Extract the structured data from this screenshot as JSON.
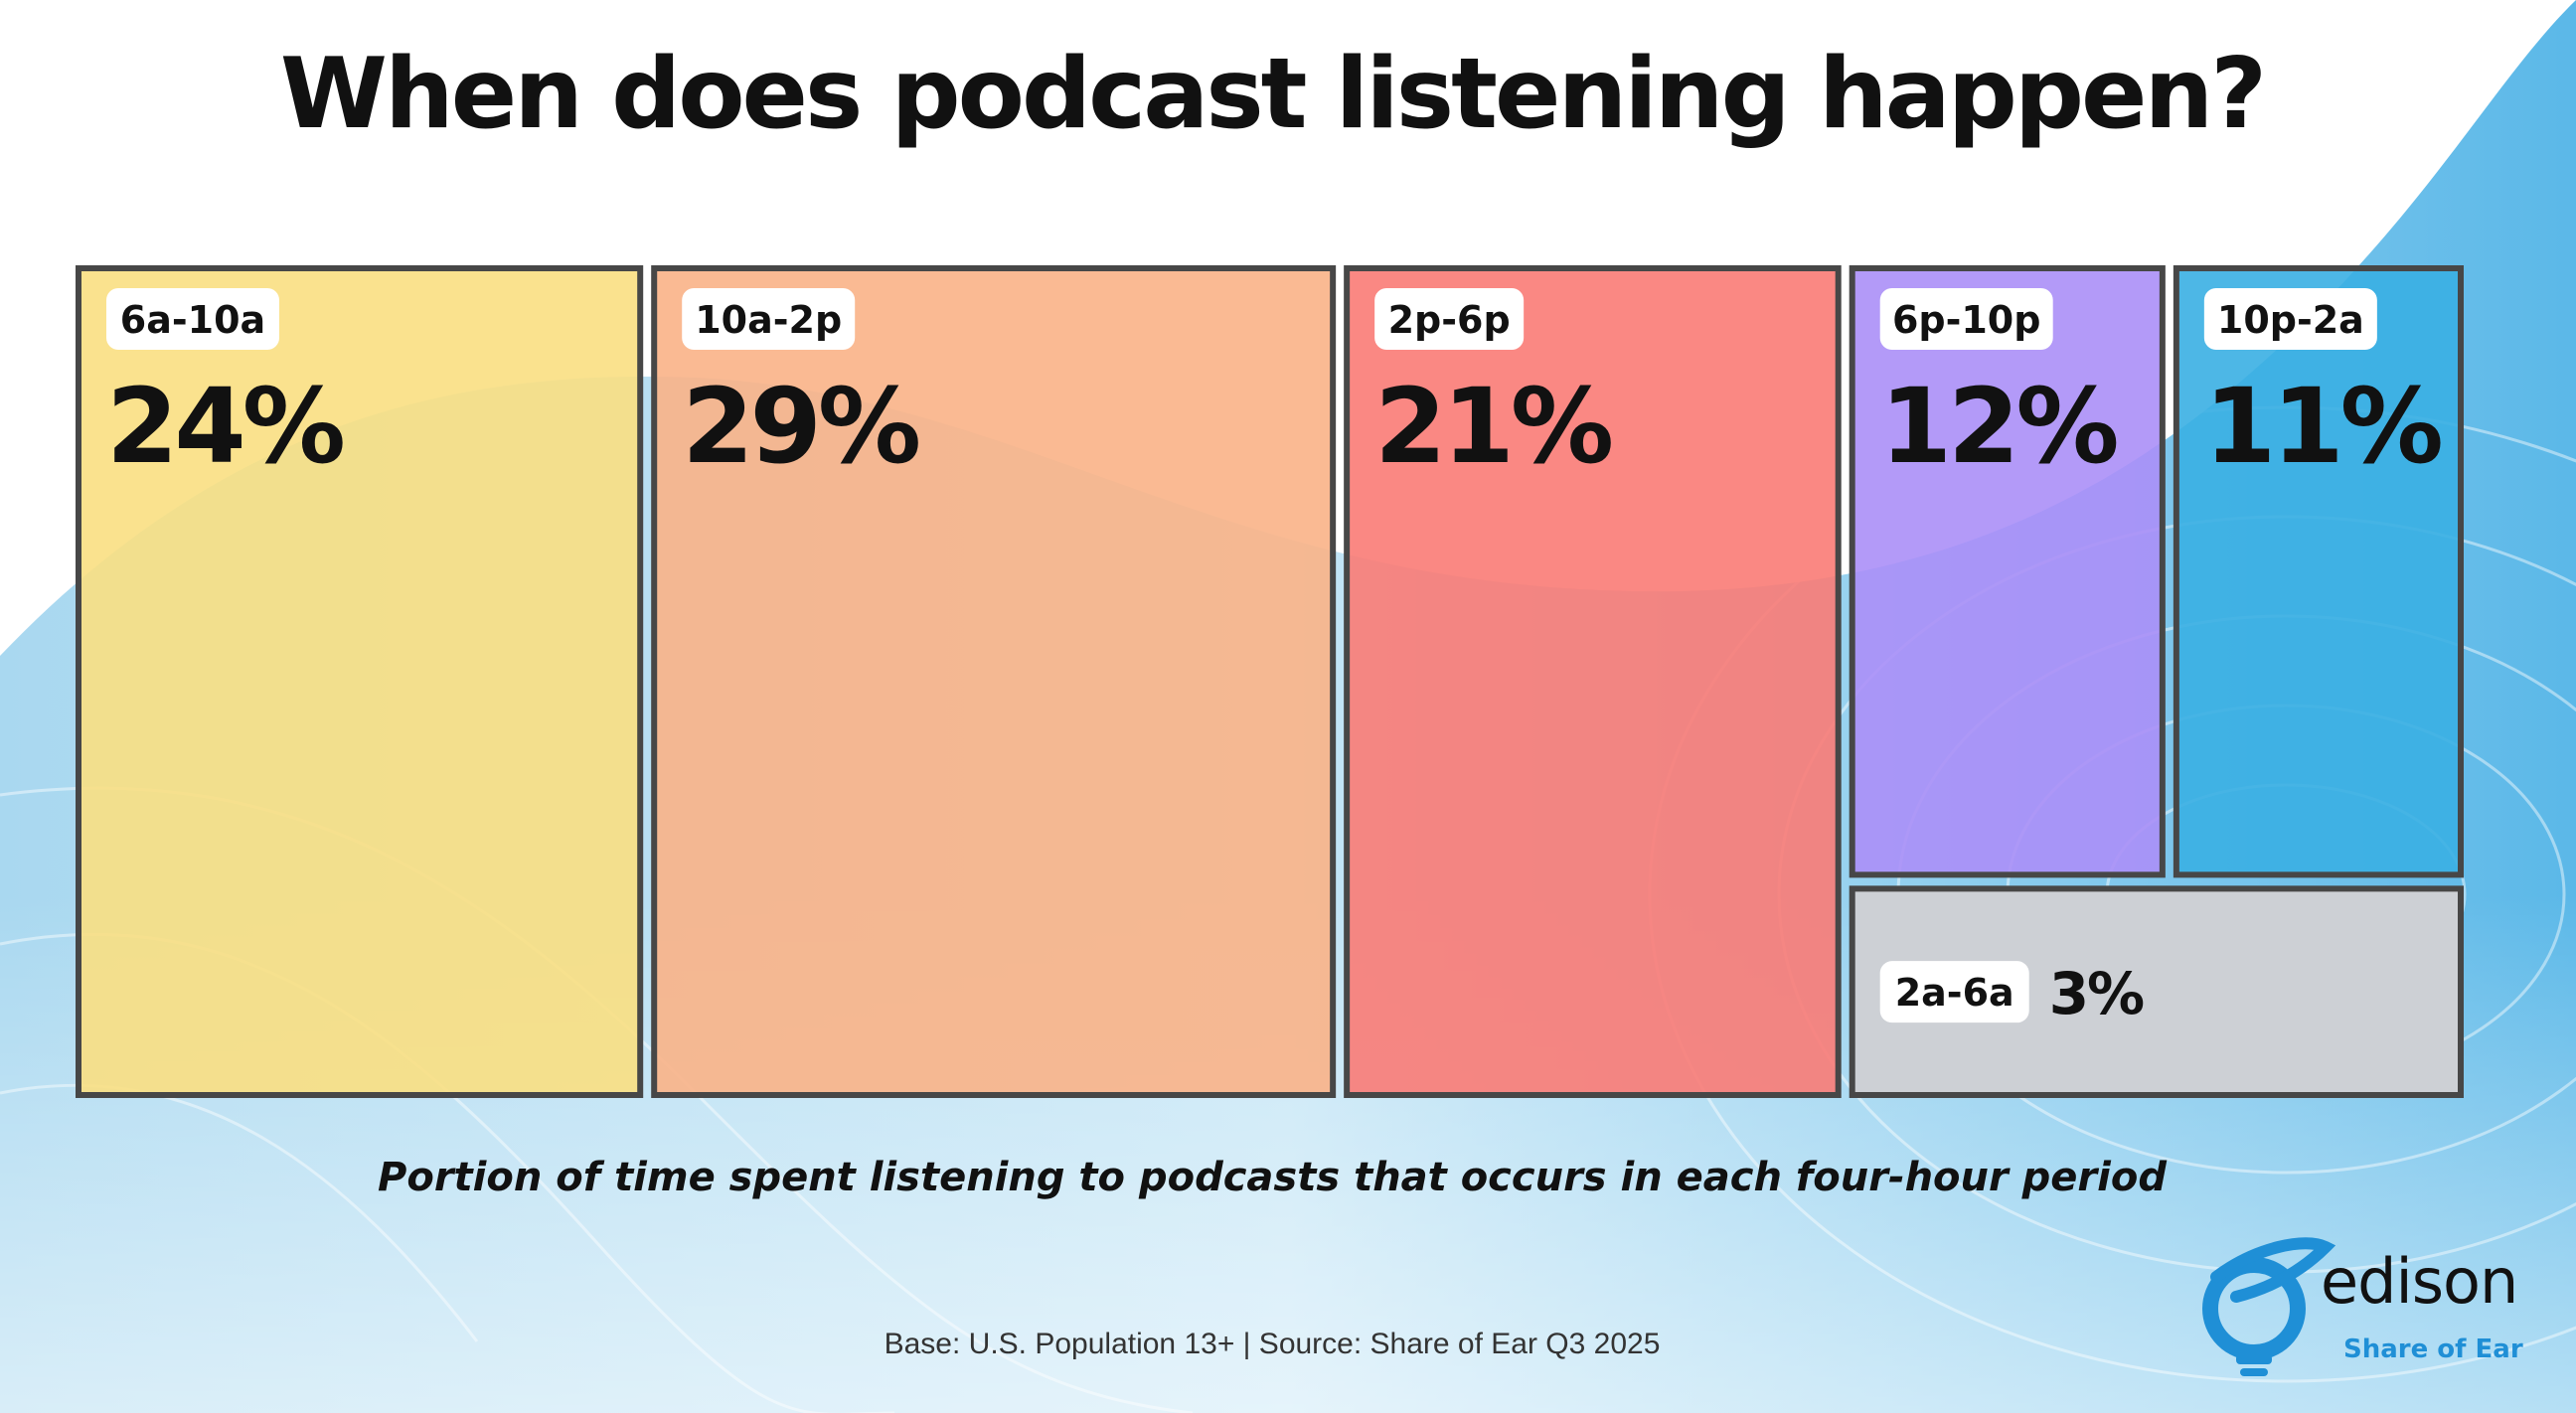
{
  "title": "When does podcast listening happen?",
  "subtitle": "Portion of time spent listening to podcasts that occurs in each four-hour period",
  "source": "Base: U.S. Population 13+ | Source: Share of Ear Q3 2025",
  "logo": {
    "name": "edison",
    "tagline": "Share of Ear"
  },
  "colors": {
    "6a-10a": "#f9df82",
    "10a-2p": "#f9b287",
    "2p-6p": "#f97b76",
    "6p-10p": "#ab8ff7",
    "10p-2a": "#3aafe3",
    "2a-6a": "#cdd0d5",
    "border": "#474747"
  },
  "chart_data": {
    "type": "treemap",
    "title": "When does podcast listening happen?",
    "caption": "Portion of time spent listening to podcasts that occurs in each four-hour period",
    "unit": "%",
    "categories": [
      "6a-10a",
      "10a-2p",
      "2p-6p",
      "6p-10p",
      "10p-2a",
      "2a-6a"
    ],
    "values": [
      24,
      29,
      21,
      12,
      11,
      3
    ],
    "labels": [
      "24%",
      "29%",
      "21%",
      "12%",
      "11%",
      "3%"
    ]
  }
}
